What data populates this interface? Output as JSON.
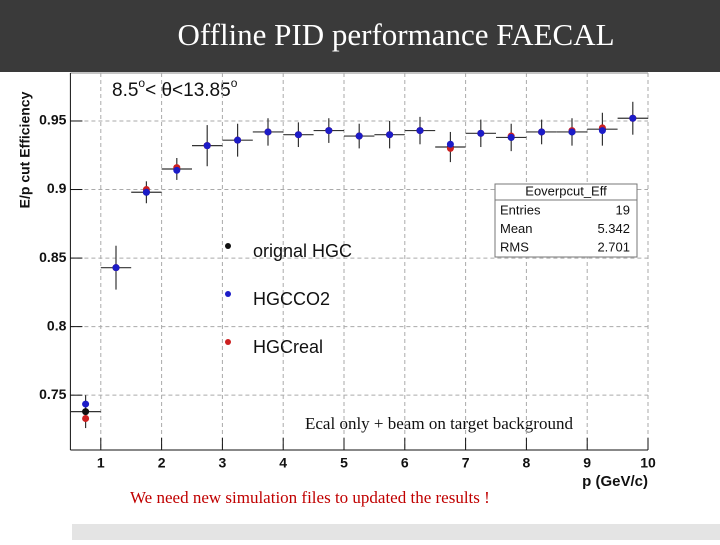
{
  "chart_data": {
    "type": "scatter",
    "title": "Offline PID performance FAECAL",
    "subtitle": [
      "8.5",
      "o",
      "< θ<13.85",
      "o"
    ],
    "ylabel": "E/p cut Efficiency",
    "xlabel": "p (GeV/c)",
    "annotations": [
      "Ecal only + beam on target background",
      "We need new simulation files to updated the results !"
    ],
    "x": [
      0.75,
      1.25,
      1.75,
      2.25,
      2.75,
      3.25,
      3.75,
      4.25,
      4.75,
      5.25,
      5.75,
      6.25,
      6.75,
      7.25,
      7.75,
      8.25,
      8.75,
      9.25,
      9.75
    ],
    "xerr": 0.25,
    "series": [
      {
        "name": "orignal HGC",
        "color": "#111111",
        "values": [
          0.738,
          0.843,
          0.898,
          0.915,
          0.932,
          0.936,
          0.942,
          0.94,
          0.943,
          0.939,
          0.94,
          0.943,
          0.931,
          0.941,
          0.938,
          0.942,
          0.942,
          0.944,
          0.952
        ],
        "errors": [
          0.012,
          0.016,
          0.008,
          0.008,
          0.015,
          0.012,
          0.01,
          0.009,
          0.009,
          0.009,
          0.01,
          0.01,
          0.011,
          0.01,
          0.01,
          0.009,
          0.01,
          0.012,
          0.012
        ]
      },
      {
        "name": "HGCCO2",
        "color": "#1c1cc8",
        "values": [
          0.7435,
          0.843,
          0.898,
          0.914,
          0.932,
          0.936,
          0.942,
          0.94,
          0.943,
          0.939,
          0.94,
          0.943,
          0.933,
          0.941,
          0.938,
          0.942,
          0.942,
          0.943,
          0.952
        ]
      },
      {
        "name": "HGCreal",
        "color": "#cc2020",
        "values": [
          0.733,
          0.843,
          0.9,
          0.916,
          0.932,
          0.936,
          0.942,
          0.94,
          0.943,
          0.939,
          0.94,
          0.943,
          0.93,
          0.941,
          0.939,
          0.942,
          0.943,
          0.945,
          0.952
        ]
      }
    ],
    "xlim": [
      0.5,
      10
    ],
    "xticks": [
      1,
      2,
      3,
      4,
      5,
      6,
      7,
      8,
      9,
      10
    ],
    "ylim": [
      0.71,
      0.985
    ],
    "yticks": [
      0.75,
      0.8,
      0.85,
      0.9,
      0.95
    ],
    "grid": true,
    "stats": {
      "title": "Eoverpcut_Eff",
      "rows": [
        {
          "label": "Entries",
          "value": 19
        },
        {
          "label": "Mean",
          "value": 5.342
        },
        {
          "label": "RMS",
          "value": 2.701
        }
      ]
    }
  }
}
